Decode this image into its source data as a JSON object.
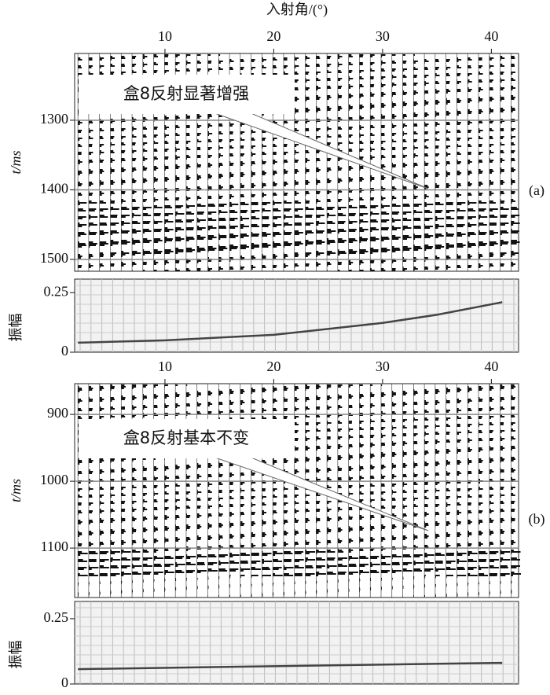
{
  "chart_data": [
    {
      "type": "seismic",
      "x_label": "入射角/(°)",
      "y_label": "t/ms",
      "panel_label": "(a)",
      "annotation": "盒8反射显著增强",
      "xlim": [
        1.7,
        42.5
      ],
      "xticks": [
        10,
        20,
        30,
        40
      ],
      "ylim": [
        1204,
        1517
      ],
      "yticks": [
        1300,
        1400,
        1500
      ],
      "grid": true
    },
    {
      "type": "line",
      "y_label": "振幅",
      "xlim": [
        1.7,
        42.5
      ],
      "ylim": [
        0,
        0.307
      ],
      "yticks": [
        0,
        0.25
      ],
      "x": [
        2,
        10,
        20,
        30,
        35,
        41
      ],
      "values": [
        0.04,
        0.05,
        0.073,
        0.123,
        0.157,
        0.21
      ],
      "color": "#444",
      "grid": true
    },
    {
      "type": "seismic",
      "y_label": "t/ms",
      "panel_label": "(b)",
      "annotation": "盒8反射基本不变",
      "xlim": [
        1.7,
        42.5
      ],
      "xticks": [
        10,
        20,
        30,
        40
      ],
      "ylim": [
        854,
        1174
      ],
      "yticks": [
        900,
        1000,
        1100
      ],
      "grid": true
    },
    {
      "type": "line",
      "y_label": "振幅",
      "xlim": [
        1.7,
        42.5
      ],
      "ylim": [
        0,
        0.316
      ],
      "yticks": [
        0,
        0.25
      ],
      "x": [
        2,
        41
      ],
      "values": [
        0.057,
        0.081
      ],
      "color": "#444",
      "grid": true
    }
  ]
}
